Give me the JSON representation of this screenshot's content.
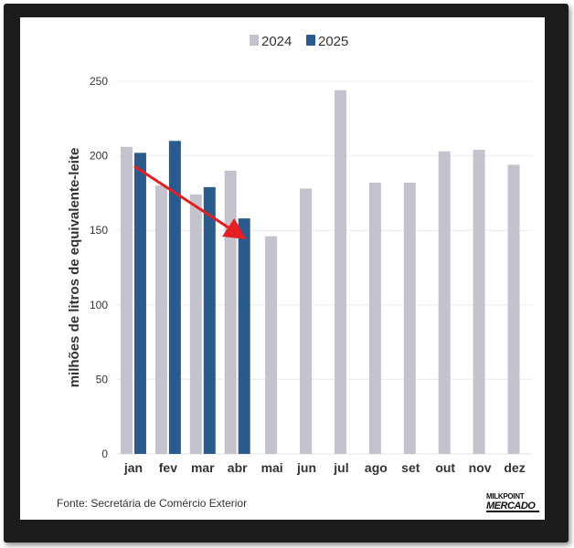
{
  "chart_data": {
    "type": "bar",
    "categories": [
      "jan",
      "fev",
      "mar",
      "abr",
      "mai",
      "jun",
      "jul",
      "ago",
      "set",
      "out",
      "nov",
      "dez"
    ],
    "series": [
      {
        "name": "2024",
        "color": "#c3c2cd",
        "values": [
          206,
          180,
          174,
          190,
          146,
          178,
          244,
          182,
          182,
          203,
          204,
          194
        ]
      },
      {
        "name": "2025",
        "color": "#2a5b8c",
        "values": [
          202,
          210,
          179,
          158,
          null,
          null,
          null,
          null,
          null,
          null,
          null,
          null
        ]
      }
    ],
    "title": "",
    "xlabel": "",
    "ylabel": "milhões de litros de equivalente-leite",
    "ylim": [
      0,
      250
    ],
    "yticks": [
      0,
      50,
      100,
      150,
      200,
      250
    ],
    "grid": true,
    "legend_position": "top-center",
    "annotation": {
      "type": "arrow",
      "color": "#e31e24",
      "from": {
        "x": "jan",
        "y": 193
      },
      "to": {
        "x": "abr",
        "y": 146
      }
    }
  },
  "footer": {
    "source": "Fonte: Secretária de Comércio Exterior",
    "logo_line1": "MILKPOINT",
    "logo_line2": "MERCADO"
  }
}
